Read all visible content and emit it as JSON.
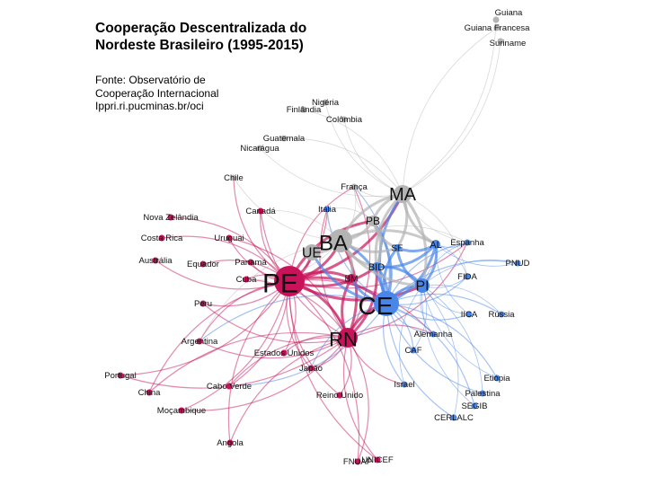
{
  "title_lines": [
    "Cooperação Descentralizada do",
    "Nordeste Brasileiro (1995-2015)"
  ],
  "source_lines": [
    "Fonte: Observatório de",
    "Cooperação Internacional",
    "Ippri.ri.pucminas.br/oci"
  ],
  "colors": {
    "PE_group": "#c8135a",
    "CE_group": "#4a86e8",
    "MA_group": "#b4b4b4"
  },
  "nodes": [
    {
      "id": "Guiana",
      "group": "MA_group"
    },
    {
      "id": "Guiana Francesa",
      "group": "MA_group"
    },
    {
      "id": "Suriname",
      "group": "MA_group"
    },
    {
      "id": "Nigéria",
      "group": "MA_group"
    },
    {
      "id": "Finlândia",
      "group": "MA_group"
    },
    {
      "id": "Colômbia",
      "group": "MA_group"
    },
    {
      "id": "Guatemala",
      "group": "MA_group"
    },
    {
      "id": "Nicarágua",
      "group": "MA_group"
    },
    {
      "id": "Chile",
      "group": "MA_group"
    },
    {
      "id": "França",
      "group": "MA_group"
    },
    {
      "id": "MA",
      "group": "MA_group"
    },
    {
      "id": "PB",
      "group": "MA_group"
    },
    {
      "id": "BA",
      "group": "MA_group"
    },
    {
      "id": "UE",
      "group": "MA_group"
    },
    {
      "id": "PE",
      "group": "PE_group"
    },
    {
      "id": "RN",
      "group": "PE_group"
    },
    {
      "id": "Canadá",
      "group": "PE_group"
    },
    {
      "id": "Nova Zelândia",
      "group": "PE_group"
    },
    {
      "id": "Uruguai",
      "group": "PE_group"
    },
    {
      "id": "Costa Rica",
      "group": "PE_group"
    },
    {
      "id": "Austrália",
      "group": "PE_group"
    },
    {
      "id": "Equador",
      "group": "PE_group"
    },
    {
      "id": "Panamá",
      "group": "PE_group"
    },
    {
      "id": "Cuba",
      "group": "PE_group"
    },
    {
      "id": "Peru",
      "group": "PE_group"
    },
    {
      "id": "Argentina",
      "group": "PE_group"
    },
    {
      "id": "Estados Unidos",
      "group": "PE_group"
    },
    {
      "id": "Japão",
      "group": "PE_group"
    },
    {
      "id": "Portugal",
      "group": "PE_group"
    },
    {
      "id": "China",
      "group": "PE_group"
    },
    {
      "id": "Cabo Verde",
      "group": "PE_group"
    },
    {
      "id": "Reino Unido",
      "group": "PE_group"
    },
    {
      "id": "Moçambique",
      "group": "PE_group"
    },
    {
      "id": "Angola",
      "group": "PE_group"
    },
    {
      "id": "FNUAP",
      "group": "PE_group"
    },
    {
      "id": "UNICEF",
      "group": "PE_group"
    },
    {
      "id": "BM",
      "group": "PE_group"
    },
    {
      "id": "CE",
      "group": "CE_group"
    },
    {
      "id": "PI",
      "group": "CE_group"
    },
    {
      "id": "AL",
      "group": "CE_group"
    },
    {
      "id": "SE",
      "group": "CE_group"
    },
    {
      "id": "BID",
      "group": "CE_group"
    },
    {
      "id": "Itália",
      "group": "CE_group"
    },
    {
      "id": "Espanha",
      "group": "CE_group"
    },
    {
      "id": "FIDA",
      "group": "CE_group"
    },
    {
      "id": "PNUD",
      "group": "CE_group"
    },
    {
      "id": "IICA",
      "group": "CE_group"
    },
    {
      "id": "Rússia",
      "group": "CE_group"
    },
    {
      "id": "Alemanha",
      "group": "CE_group"
    },
    {
      "id": "CAF",
      "group": "CE_group"
    },
    {
      "id": "Israel",
      "group": "CE_group"
    },
    {
      "id": "Etiópia",
      "group": "CE_group"
    },
    {
      "id": "Palestina",
      "group": "CE_group"
    },
    {
      "id": "SEGIB",
      "group": "CE_group"
    },
    {
      "id": "CERLALC",
      "group": "CE_group"
    }
  ],
  "edges": [
    [
      "PE",
      [
        "RN",
        "BA",
        "CE",
        "UE",
        "BM",
        "BID",
        "Canadá",
        "Nova Zelândia",
        "Uruguai",
        "Costa Rica",
        "Austrália",
        "Equador",
        "Panamá",
        "Cuba",
        "Peru",
        "Argentina",
        "Estados Unidos",
        "Japão",
        "Portugal",
        "China",
        "Cabo Verde",
        "Reino Unido",
        "Moçambique",
        "Angola",
        "FNUAP",
        "UNICEF",
        "França",
        "Itália",
        "Chile",
        "MA",
        "PB",
        "PI",
        "Alemanha",
        "Espanha"
      ]
    ],
    [
      "RN",
      [
        "CE",
        "BA",
        "BM",
        "BID",
        "Argentina",
        "Cabo Verde",
        "Portugal",
        "China",
        "Moçambique",
        "Angola",
        "Japão",
        "Estados Unidos",
        "Reino Unido",
        "UNICEF",
        "FNUAP",
        "Cuba",
        "Peru",
        "Uruguai",
        "Canadá",
        "França",
        "Itália",
        "Espanha",
        "Alemanha",
        "Israel"
      ]
    ],
    [
      "CE",
      [
        "PI",
        "AL",
        "SE",
        "BID",
        "BM",
        "BA",
        "MA",
        "PB",
        "Espanha",
        "FIDA",
        "PNUD",
        "IICA",
        "Rússia",
        "Alemanha",
        "CAF",
        "Israel",
        "Etiópia",
        "Palestina",
        "SEGIB",
        "CERLALC",
        "Itália",
        "França",
        "UE",
        "Argentina",
        "Cabo Verde",
        "Japão"
      ]
    ],
    [
      "BA",
      [
        "MA",
        "PB",
        "UE",
        "BID",
        "BM",
        "SE",
        "AL",
        "PI",
        "Itália",
        "França",
        "Chile",
        "Canadá",
        "Espanha",
        "Argentina",
        "Cuba"
      ]
    ],
    [
      "MA",
      [
        "Guiana",
        "Guiana Francesa",
        "Suriname",
        "Nigéria",
        "Finlândia",
        "Colômbia",
        "Guatemala",
        "Nicarágua",
        "PB",
        "SE",
        "AL",
        "PI",
        "BID",
        "França",
        "Espanha",
        "FIDA"
      ]
    ],
    [
      "PI",
      [
        "AL",
        "SE",
        "BID",
        "Espanha",
        "FIDA",
        "PNUD",
        "IICA",
        "Rússia",
        "Alemanha",
        "CAF",
        "Israel",
        "Palestina",
        "SEGIB",
        "CERLALC",
        "Etiópia"
      ]
    ],
    [
      "AL",
      [
        "SE",
        "Espanha",
        "FIDA",
        "PNUD",
        "BID",
        "IICA"
      ]
    ],
    [
      "PB",
      [
        "França",
        "Itália",
        "BID",
        "SE"
      ]
    ]
  ]
}
